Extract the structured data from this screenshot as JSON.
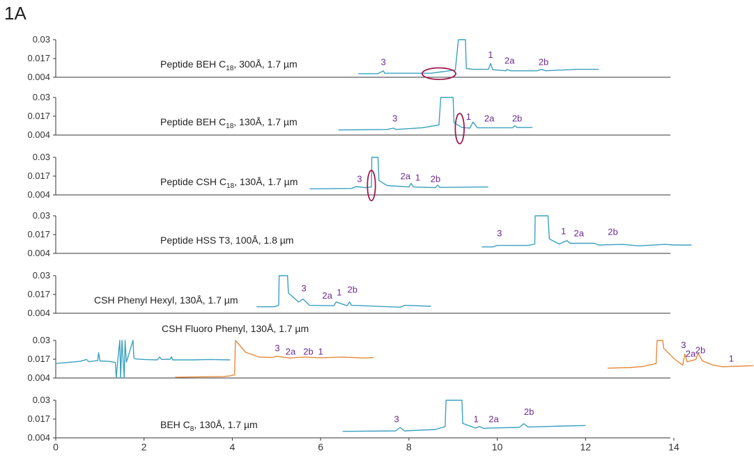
{
  "figure_label": "1A",
  "chart_data": {
    "type": "line",
    "stacked_panels": true,
    "grid": false,
    "xlim": [
      0,
      15.8
    ],
    "x_ticks": [
      "0",
      "2",
      "4",
      "6",
      "8",
      "10",
      "12",
      "14"
    ],
    "ylim": [
      0.004,
      0.03
    ],
    "y_ticks": [
      "0.03",
      "0.017",
      "0.004"
    ],
    "colors": {
      "trace": "#3aa0c0",
      "trace_alt": "#e8893a",
      "peak_label": "#6a2a90",
      "marker": "#a0184d",
      "axis": "#333333"
    },
    "panels": [
      {
        "label": "Peptide BEH C18, 300Å, 1.7 µm",
        "label_parts": [
          "Peptide BEH C",
          "18",
          ", 300Å, 1.7 µm"
        ],
        "series": [
          {
            "color": "trace",
            "x": [
              6.85,
              7.3,
              7.42,
              7.45,
              7.6,
              8.5,
              9.05,
              9.12,
              9.13,
              9.28,
              9.3,
              9.45,
              9.8,
              9.85,
              9.9,
              10.2,
              10.22,
              10.3,
              10.9,
              11,
              11.1,
              11.8,
              12.3
            ],
            "y": [
              0.0065,
              0.0065,
              0.0085,
              0.0068,
              0.0068,
              0.0068,
              0.009,
              0.03,
              0.03,
              0.03,
              0.01,
              0.0095,
              0.0095,
              0.0135,
              0.0092,
              0.0085,
              0.0095,
              0.0085,
              0.0085,
              0.0095,
              0.0085,
              0.0095,
              0.0095
            ]
          }
        ],
        "peaks": [
          {
            "text": "3",
            "x": 7.42,
            "y": 0.0125
          },
          {
            "text": "1",
            "x": 9.85,
            "y": 0.0175
          },
          {
            "text": "2a",
            "x": 10.28,
            "y": 0.0135
          },
          {
            "text": "2b",
            "x": 11.05,
            "y": 0.0125
          }
        ],
        "markers": [
          {
            "x": 8.68,
            "y": 0.0065,
            "rx": 0.38,
            "ry": 0.004
          }
        ]
      },
      {
        "label": "Peptide BEH C18, 130Å, 1.7 µm",
        "label_parts": [
          "Peptide BEH C",
          "18",
          ", 130Å, 1.7 µm"
        ],
        "series": [
          {
            "color": "trace",
            "x": [
              6.4,
              7.5,
              7.65,
              7.7,
              8.3,
              8.68,
              8.72,
              8.73,
              9.0,
              9.02,
              9.2,
              9.38,
              9.45,
              9.55,
              10.35,
              10.4,
              10.45,
              10.8
            ],
            "y": [
              0.0075,
              0.0078,
              0.0088,
              0.0079,
              0.009,
              0.011,
              0.03,
              0.03,
              0.03,
              0.0125,
              0.0092,
              0.0088,
              0.013,
              0.009,
              0.009,
              0.0105,
              0.0092,
              0.0092
            ]
          }
        ],
        "peaks": [
          {
            "text": "3",
            "x": 7.68,
            "y": 0.0135
          },
          {
            "text": "1",
            "x": 9.35,
            "y": 0.0145
          },
          {
            "text": "2a",
            "x": 9.82,
            "y": 0.0135
          },
          {
            "text": "2b",
            "x": 10.45,
            "y": 0.0135
          }
        ],
        "markers": [
          {
            "x": 9.15,
            "y": 0.0085,
            "rx": 0.1,
            "ry": 0.0105
          }
        ]
      },
      {
        "label": "Peptide CSH C18, 130Å, 1.7 µm",
        "label_parts": [
          "Peptide CSH C",
          "18",
          ", 130Å, 1.7 µm"
        ],
        "series": [
          {
            "color": "trace",
            "x": [
              5.75,
              6.7,
              6.8,
              7.0,
              7.15,
              7.16,
              7.3,
              7.32,
              7.5,
              8.0,
              8.05,
              8.1,
              8.6,
              8.65,
              8.7,
              9.8
            ],
            "y": [
              0.0082,
              0.0085,
              0.0098,
              0.009,
              0.0095,
              0.03,
              0.03,
              0.014,
              0.0105,
              0.0095,
              0.012,
              0.0095,
              0.009,
              0.0108,
              0.0092,
              0.0095
            ]
          }
        ],
        "peaks": [
          {
            "text": "3",
            "x": 6.88,
            "y": 0.0128
          },
          {
            "text": "2a",
            "x": 7.92,
            "y": 0.0148
          },
          {
            "text": "1",
            "x": 8.2,
            "y": 0.0138
          },
          {
            "text": "2b",
            "x": 8.6,
            "y": 0.0128
          }
        ],
        "markers": [
          {
            "x": 7.15,
            "y": 0.0105,
            "rx": 0.09,
            "ry": 0.0105
          }
        ]
      },
      {
        "label": "Peptide HSS T3, 100Å, 1.8 µm",
        "label_parts": [
          "Peptide HSS T3, 100Å, 1.8 µm"
        ],
        "series": [
          {
            "color": "trace",
            "x": [
              9.65,
              9.9,
              10.0,
              10.7,
              10.85,
              10.86,
              11.15,
              11.18,
              11.4,
              11.58,
              11.65,
              12.2,
              12.3,
              12.85,
              13.2,
              13.8,
              14.0,
              14.4
            ],
            "y": [
              0.0085,
              0.0085,
              0.0095,
              0.0095,
              0.0105,
              0.03,
              0.03,
              0.014,
              0.0105,
              0.0128,
              0.011,
              0.011,
              0.0098,
              0.0102,
              0.0092,
              0.0102,
              0.0098,
              0.0098
            ]
          }
        ],
        "peaks": [
          {
            "text": "3",
            "x": 10.05,
            "y": 0.0158
          },
          {
            "text": "1",
            "x": 11.5,
            "y": 0.0172
          },
          {
            "text": "2a",
            "x": 11.85,
            "y": 0.0158
          },
          {
            "text": "2b",
            "x": 12.62,
            "y": 0.0168
          }
        ],
        "markers": []
      },
      {
        "label": "CSH Phenyl Hexyl, 130Å, 1.7 µm",
        "label_parts": [
          "CSH Phenyl Hexyl, 130Å, 1.7 µm"
        ],
        "series": [
          {
            "color": "trace",
            "x": [
              4.55,
              4.95,
              5.05,
              5.06,
              5.25,
              5.27,
              5.5,
              5.6,
              5.75,
              6.3,
              6.35,
              6.6,
              6.65,
              6.7,
              7.8,
              7.9,
              8.5
            ],
            "y": [
              0.0085,
              0.0085,
              0.0095,
              0.03,
              0.03,
              0.018,
              0.0118,
              0.0138,
              0.0095,
              0.0092,
              0.0118,
              0.0092,
              0.0118,
              0.0095,
              0.0082,
              0.0095,
              0.0088
            ]
          }
        ],
        "peaks": [
          {
            "text": "3",
            "x": 5.62,
            "y": 0.0192
          },
          {
            "text": "2a",
            "x": 6.15,
            "y": 0.0142
          },
          {
            "text": "1",
            "x": 6.42,
            "y": 0.0162
          },
          {
            "text": "2b",
            "x": 6.72,
            "y": 0.0182
          }
        ],
        "markers": []
      },
      {
        "label": "CSH Fluoro Phenyl, 130Å, 1.7 µm",
        "label_parts": [
          "CSH Fluoro Phenyl, 130Å, 1.7 µm"
        ],
        "label_above": true,
        "series": [
          {
            "color": "trace",
            "x": [
              0,
              0.55,
              0.7,
              0.75,
              0.8,
              0.95,
              0.97,
              1.0,
              1.2,
              1.35,
              1.37,
              1.4,
              1.45,
              1.47,
              1.5,
              1.55,
              1.57,
              1.6,
              1.75,
              1.77,
              1.8,
              2.0,
              2.3,
              2.35,
              2.4,
              2.6,
              2.62,
              2.65,
              3.1,
              3.5,
              3.95
            ],
            "y": [
              0.014,
              0.0155,
              0.0168,
              0.0152,
              0.0155,
              0.016,
              0.0215,
              0.0158,
              0.0155,
              0.0148,
              0.004,
              0.0145,
              0.03,
              0.004,
              0.03,
              0.004,
              0.03,
              0.015,
              0.03,
              0.018,
              0.0172,
              0.0168,
              0.0165,
              0.0185,
              0.0168,
              0.017,
              0.0188,
              0.0165,
              0.0165,
              0.0168,
              0.0165
            ]
          },
          {
            "color": "trace_alt",
            "x": [
              2.7,
              3.3,
              3.8,
              3.95,
              4.05,
              4.07,
              4.3,
              4.6,
              4.9,
              5.0,
              5.3,
              5.6,
              6.0,
              6.5,
              7.0,
              7.2
            ],
            "y": [
              0.0045,
              0.0048,
              0.005,
              0.0055,
              0.0062,
              0.03,
              0.0218,
              0.0185,
              0.0182,
              0.019,
              0.0178,
              0.0185,
              0.018,
              0.0185,
              0.0178,
              0.0182
            ]
          },
          {
            "color": "trace_alt",
            "x": [
              12.5,
              13.0,
              13.3,
              13.6,
              13.62,
              13.75,
              13.77,
              14.0,
              14.2,
              14.25,
              14.3,
              14.5,
              14.55,
              14.65,
              14.9,
              15.1,
              15.5,
              15.8
            ],
            "y": [
              0.0108,
              0.0112,
              0.012,
              0.014,
              0.03,
              0.03,
              0.0245,
              0.0175,
              0.0128,
              0.0205,
              0.0152,
              0.0168,
              0.0212,
              0.0158,
              0.0128,
              0.0118,
              0.0122,
              0.0125
            ]
          }
        ],
        "peaks": [
          {
            "text": "3",
            "x": 5.02,
            "y": 0.0225
          },
          {
            "text": "2a",
            "x": 5.32,
            "y": 0.0202
          },
          {
            "text": "2b",
            "x": 5.72,
            "y": 0.0202
          },
          {
            "text": "1",
            "x": 6.0,
            "y": 0.0202
          },
          {
            "text": "3",
            "x": 14.22,
            "y": 0.0248
          },
          {
            "text": "2a",
            "x": 14.38,
            "y": 0.0188
          },
          {
            "text": "2b",
            "x": 14.6,
            "y": 0.0212
          },
          {
            "text": "1",
            "x": 15.3,
            "y": 0.0152
          }
        ],
        "markers": []
      },
      {
        "label": "BEH C8, 130Å, 1.7 µm",
        "label_parts": [
          "BEH C",
          "8",
          ", 130Å, 1.7 µm"
        ],
        "series": [
          {
            "color": "trace",
            "x": [
              6.5,
              7.7,
              7.8,
              7.9,
              8.6,
              8.82,
              8.84,
              9.2,
              9.22,
              9.5,
              9.6,
              9.7,
              9.8,
              10.5,
              10.6,
              10.7,
              11.5,
              12.0
            ],
            "y": [
              0.0085,
              0.0088,
              0.0112,
              0.0088,
              0.0098,
              0.0118,
              0.03,
              0.03,
              0.014,
              0.0108,
              0.0118,
              0.0105,
              0.0108,
              0.0112,
              0.0138,
              0.0115,
              0.0122,
              0.0125
            ]
          }
        ],
        "peaks": [
          {
            "text": "3",
            "x": 7.72,
            "y": 0.0148
          },
          {
            "text": "1",
            "x": 9.52,
            "y": 0.0148
          },
          {
            "text": "2a",
            "x": 9.92,
            "y": 0.0148
          },
          {
            "text": "2b",
            "x": 10.72,
            "y": 0.0198
          }
        ],
        "markers": []
      }
    ]
  }
}
